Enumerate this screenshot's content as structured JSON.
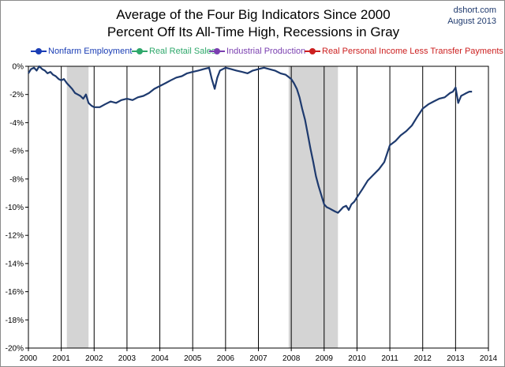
{
  "chart_data": {
    "type": "line",
    "title_line1": "Average of the Four Big Indicators Since 2000",
    "title_line2": "Percent Off Its All-Time High, Recessions in Gray",
    "credit_line1": "dshort.com",
    "credit_line2": "August 2013",
    "legend": [
      {
        "label": "Nonfarm Employment",
        "color": "#1a3db5"
      },
      {
        "label": "Real Retail Sales",
        "color": "#2fa86b"
      },
      {
        "label": "Industrial Production",
        "color": "#7a3fb0"
      },
      {
        "label": "Real Personal Income Less Transfer Payments",
        "color": "#cc1f1f"
      }
    ],
    "xlim": [
      2000,
      2014
    ],
    "ylim": [
      -20,
      0
    ],
    "x_ticks": [
      2000,
      2001,
      2002,
      2003,
      2004,
      2005,
      2006,
      2007,
      2008,
      2009,
      2010,
      2011,
      2012,
      2013,
      2014
    ],
    "x_tick_labels": [
      "2000",
      "2001",
      "2002",
      "2003",
      "2004",
      "2005",
      "2006",
      "2007",
      "2008",
      "2009",
      "2010",
      "2011",
      "2012",
      "2013",
      "2014"
    ],
    "y_ticks": [
      0,
      -2,
      -4,
      -6,
      -8,
      -10,
      -12,
      -14,
      -16,
      -18,
      -20
    ],
    "y_tick_labels": [
      "0%",
      "-2%",
      "-4%",
      "-6%",
      "-8%",
      "-10%",
      "-12%",
      "-14%",
      "-16%",
      "-18%",
      "-20%"
    ],
    "recessions": [
      [
        2001.17,
        2001.83
      ],
      [
        2007.92,
        2009.42
      ]
    ],
    "vertical_grid_years": [
      2001,
      2002,
      2003,
      2004,
      2005,
      2006,
      2007,
      2008,
      2009,
      2010,
      2011,
      2012,
      2013
    ],
    "line_color": "#1e3a6e",
    "recession_color": "#d4d4d4",
    "series": [
      {
        "x": [
          2000.0,
          2000.08,
          2000.17,
          2000.25,
          2000.33,
          2000.42,
          2000.5,
          2000.58,
          2000.67,
          2000.75,
          2000.83,
          2000.92,
          2001.0,
          2001.08,
          2001.17,
          2001.25,
          2001.33,
          2001.42,
          2001.5,
          2001.58,
          2001.67,
          2001.75,
          2001.83,
          2001.92,
          2002.0,
          2002.17,
          2002.33,
          2002.5,
          2002.67,
          2002.83,
          2003.0,
          2003.17,
          2003.33,
          2003.5,
          2003.67,
          2003.83,
          2004.0,
          2004.17,
          2004.33,
          2004.5,
          2004.67,
          2004.83,
          2005.0,
          2005.17,
          2005.33,
          2005.5,
          2005.58,
          2005.67,
          2005.75,
          2005.83,
          2006.0,
          2006.17,
          2006.33,
          2006.5,
          2006.67,
          2006.83,
          2007.0,
          2007.17,
          2007.33,
          2007.5,
          2007.67,
          2007.83,
          2008.0,
          2008.08,
          2008.17,
          2008.25,
          2008.33,
          2008.42,
          2008.5,
          2008.58,
          2008.67,
          2008.75,
          2008.83,
          2008.92,
          2009.0,
          2009.08,
          2009.17,
          2009.25,
          2009.33,
          2009.42,
          2009.5,
          2009.58,
          2009.67,
          2009.75,
          2009.83,
          2009.92,
          2010.0,
          2010.17,
          2010.33,
          2010.5,
          2010.67,
          2010.83,
          2011.0,
          2011.17,
          2011.33,
          2011.5,
          2011.67,
          2011.83,
          2012.0,
          2012.17,
          2012.33,
          2012.5,
          2012.67,
          2012.83,
          2012.92,
          2013.0,
          2013.08,
          2013.17,
          2013.25,
          2013.33,
          2013.42,
          2013.5
        ],
        "values": [
          -0.5,
          -0.2,
          -0.1,
          -0.3,
          0.0,
          -0.2,
          -0.3,
          -0.5,
          -0.4,
          -0.6,
          -0.7,
          -0.9,
          -1.0,
          -0.9,
          -1.2,
          -1.4,
          -1.6,
          -1.9,
          -2.0,
          -2.1,
          -2.3,
          -2.0,
          -2.6,
          -2.8,
          -2.9,
          -2.9,
          -2.7,
          -2.5,
          -2.6,
          -2.4,
          -2.3,
          -2.4,
          -2.2,
          -2.1,
          -1.9,
          -1.6,
          -1.4,
          -1.2,
          -1.0,
          -0.8,
          -0.7,
          -0.5,
          -0.4,
          -0.3,
          -0.2,
          -0.1,
          -0.9,
          -1.6,
          -0.8,
          -0.3,
          -0.1,
          -0.2,
          -0.3,
          -0.4,
          -0.5,
          -0.3,
          -0.2,
          -0.1,
          -0.2,
          -0.3,
          -0.5,
          -0.6,
          -0.9,
          -1.2,
          -1.6,
          -2.2,
          -3.0,
          -3.8,
          -4.8,
          -5.8,
          -6.8,
          -7.8,
          -8.5,
          -9.2,
          -9.8,
          -10.0,
          -10.1,
          -10.2,
          -10.3,
          -10.4,
          -10.2,
          -10.0,
          -9.9,
          -10.2,
          -9.8,
          -9.6,
          -9.3,
          -8.7,
          -8.1,
          -7.7,
          -7.3,
          -6.8,
          -5.6,
          -5.3,
          -4.9,
          -4.6,
          -4.2,
          -3.6,
          -3.0,
          -2.7,
          -2.5,
          -2.3,
          -2.2,
          -1.9,
          -1.8,
          -1.5,
          -2.6,
          -2.1,
          -2.0,
          -1.9,
          -1.8,
          -1.8
        ]
      }
    ]
  }
}
